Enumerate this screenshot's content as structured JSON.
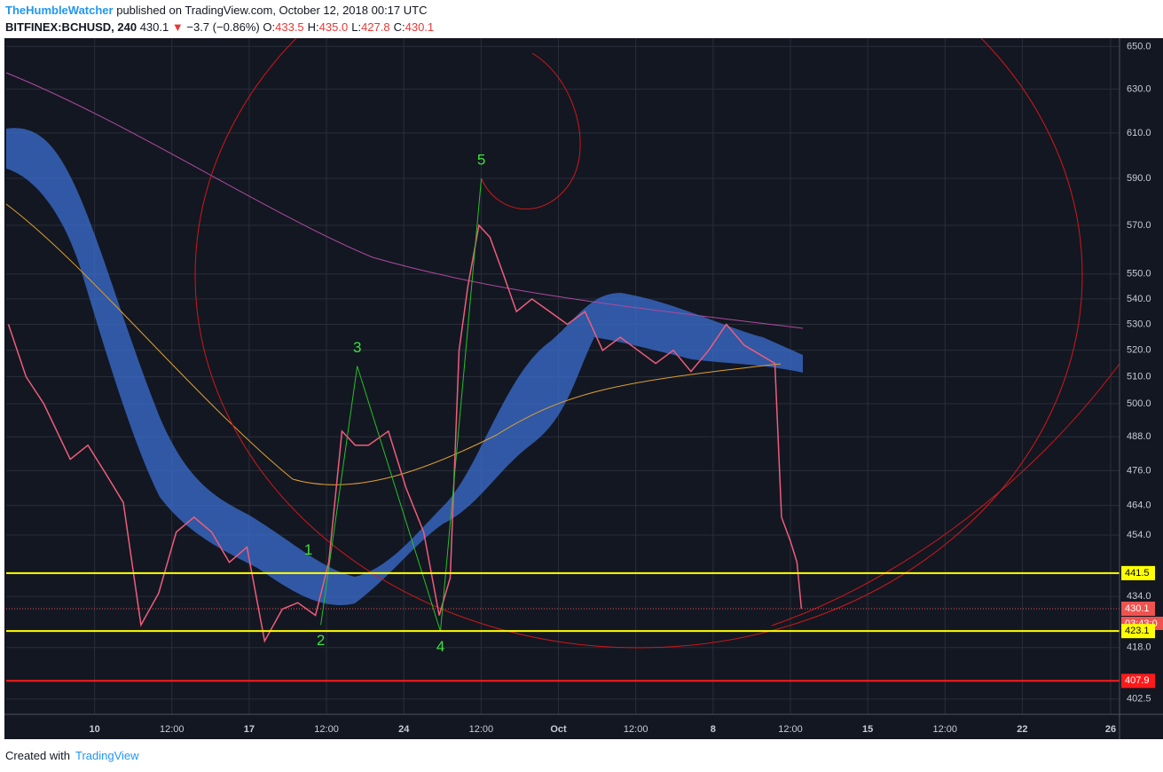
{
  "header": {
    "author": "TheHumbleWatcher",
    "published": "published on TradingView.com, October 12, 2018 00:17 UTC",
    "symbol": "BITFINEX:BCHUSD, 240",
    "last": "430.1",
    "change": "−3.7 (−0.86%)",
    "ohlc": [
      {
        "label": "O:",
        "value": "433.5"
      },
      {
        "label": "H:",
        "value": "435.0"
      },
      {
        "label": "L:",
        "value": "427.8"
      },
      {
        "label": "C:",
        "value": "430.1"
      }
    ]
  },
  "chart_data": {
    "type": "line",
    "color": "#ef5d7a",
    "log_scale": true,
    "grid": true,
    "x": [
      6.1,
      6.9,
      7.7,
      8.9,
      9.7,
      10.5,
      11.3,
      12.1,
      12.9,
      13.7,
      14.5,
      15.3,
      16.1,
      16.9,
      17.7,
      18.5,
      19.2,
      20.0,
      20.6,
      21.2,
      21.8,
      22.4,
      23.3,
      24.1,
      24.9,
      25.6,
      26.1,
      26.5,
      26.9,
      27.4,
      27.9,
      28.5,
      29.1,
      29.8,
      30.6,
      31.4,
      32.2,
      33.0,
      33.8,
      34.6,
      35.4,
      36.2,
      37.0,
      37.8,
      38.6,
      39.4,
      40.2,
      40.8,
      41.1,
      41.5,
      41.8,
      42.0
    ],
    "values": [
      530,
      510,
      500,
      480,
      485,
      475,
      465,
      425,
      435,
      455,
      460,
      455,
      445,
      450,
      420,
      430,
      432,
      428,
      445,
      490,
      485,
      485,
      490,
      470,
      455,
      428,
      440,
      520,
      545,
      570,
      565,
      550,
      535,
      540,
      535,
      530,
      535,
      520,
      525,
      520,
      515,
      520,
      512,
      520,
      530,
      522,
      518,
      515,
      460,
      452,
      445,
      430.1
    ],
    "xlim": [
      6,
      56.4
    ],
    "xticks": [
      {
        "value": 10,
        "label": "10"
      },
      {
        "value": 13.5,
        "label": "12:00"
      },
      {
        "value": 17,
        "label": "17"
      },
      {
        "value": 20.5,
        "label": "12:00"
      },
      {
        "value": 24,
        "label": "24"
      },
      {
        "value": 27.5,
        "label": "12:00"
      },
      {
        "value": 31,
        "label": "Oct"
      },
      {
        "value": 34.5,
        "label": "12:00"
      },
      {
        "value": 38,
        "label": "8"
      },
      {
        "value": 41.5,
        "label": "12:00"
      },
      {
        "value": 45,
        "label": "15"
      },
      {
        "value": 48.5,
        "label": "12:00"
      },
      {
        "value": 52,
        "label": "22"
      },
      {
        "value": 56,
        "label": "26"
      }
    ],
    "ylim": [
      398,
      654
    ],
    "yticks": [
      {
        "value": 650,
        "label": "650.0"
      },
      {
        "value": 630,
        "label": "630.0"
      },
      {
        "value": 610,
        "label": "610.0"
      },
      {
        "value": 590,
        "label": "590.0"
      },
      {
        "value": 570,
        "label": "570.0"
      },
      {
        "value": 550,
        "label": "550.0"
      },
      {
        "value": 540,
        "label": "540.0"
      },
      {
        "value": 530,
        "label": "530.0"
      },
      {
        "value": 520,
        "label": "520.0"
      },
      {
        "value": 510,
        "label": "510.0"
      },
      {
        "value": 500,
        "label": "500.0"
      },
      {
        "value": 488,
        "label": "488.0"
      },
      {
        "value": 476,
        "label": "476.0"
      },
      {
        "value": 464,
        "label": "464.0"
      },
      {
        "value": 454,
        "label": "454.0"
      },
      {
        "value": 434,
        "label": "434.0"
      },
      {
        "value": 418,
        "label": "418.0"
      },
      {
        "value": 402.5,
        "label": "402.5"
      }
    ],
    "price_lines": [
      {
        "value": 441.5,
        "color": "#ffff00"
      },
      {
        "value": 430.1,
        "color": "#ef5350"
      },
      {
        "value": 423.1,
        "color": "#ffff00"
      },
      {
        "value": 407.9,
        "color": "#ff1a1a"
      }
    ],
    "countdown": "03:43:0",
    "annotations": [
      {
        "text": "1",
        "x": 20.64,
        "y": 443
      },
      {
        "text": "2",
        "x": 20.24,
        "y": 425
      },
      {
        "text": "3",
        "x": 21.89,
        "y": 514
      },
      {
        "text": "4",
        "x": 25.66,
        "y": 423
      },
      {
        "text": "5",
        "x": 27.51,
        "y": 590
      }
    ]
  },
  "footer": {
    "created": "Created with",
    "brand": "TradingView"
  }
}
